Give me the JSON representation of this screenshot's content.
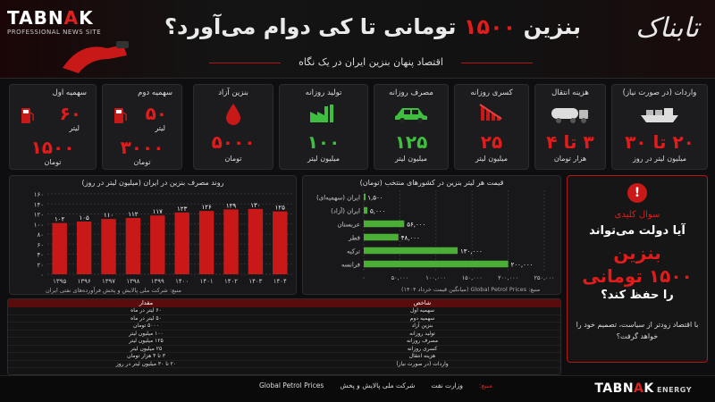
{
  "header": {
    "logo_left": "TABNAK",
    "logo_sub": "PROFESSIONAL NEWS SITE",
    "brand_fa": "تابناک",
    "title_pre": "بنزین",
    "title_red": "۱۵۰۰",
    "title_post": "تومانی تا کی دوام می‌آورد؟",
    "subtitle": "اقتصاد پنهان بنزین ایران در یک نگاه"
  },
  "cards": [
    {
      "title": "واردات (در صورت نیاز)",
      "value": "۲۰ تا ۳۰",
      "unit": "میلیون لیتر در روز",
      "icon": "tanker-ship-icon",
      "color": "red"
    },
    {
      "title": "هزینه انتقال",
      "value": "۳ تا ۴",
      "unit": "هزار تومان",
      "icon": "tanker-truck-icon",
      "color": "red"
    },
    {
      "title": "کسری روزانه",
      "value": "۲۵",
      "unit": "میلیون لیتر",
      "icon": "trend-down-icon",
      "color": "red"
    },
    {
      "title": "مصرف روزانه",
      "value": "۱۲۵",
      "unit": "میلیون لیتر",
      "icon": "car-icon",
      "color": "green"
    },
    {
      "title": "تولید روزانه",
      "value": "۱۰۰",
      "unit": "میلیون لیتر",
      "icon": "factory-icon",
      "color": "green"
    },
    {
      "title": "بنزین آزاد",
      "value": "۵۰۰۰",
      "unit": "تومان",
      "icon": "drop-icon",
      "color": "red"
    }
  ],
  "quota2": {
    "title": "سهمیه دوم",
    "amount": "۵۰",
    "amount_unit": "لیتر",
    "price": "۳۰۰۰",
    "price_unit": "تومان"
  },
  "quota1": {
    "title": "سهمیه اول",
    "amount": "۶۰",
    "amount_unit": "لیتر",
    "price": "۱۵۰۰",
    "price_unit": "تومان"
  },
  "colors": {
    "accent": "#e21b1b",
    "green": "#3fbf3f",
    "bar_green": "#4caf35",
    "bar_red": "#c81818"
  },
  "chart_data": [
    {
      "type": "bar",
      "title": "روند مصرف بنزین در ایران (میلیون لیتر در روز)",
      "categories": [
        "۱۳۹۵",
        "۱۳۹۶",
        "۱۳۹۷",
        "۱۳۹۸",
        "۱۳۹۹",
        "۱۴۰۰",
        "۱۴۰۱",
        "۱۴۰۲",
        "۱۴۰۳",
        "۱۴۰۴"
      ],
      "values": [
        102,
        105,
        110,
        112,
        117,
        123,
        126,
        129,
        130,
        125
      ],
      "value_labels": [
        "۱۰۲",
        "۱۰۵",
        "۱۱۰",
        "۱۱۲",
        "۱۱۷",
        "۱۲۳",
        "۱۲۶",
        "۱۲۹",
        "۱۳۰",
        "۱۲۵"
      ],
      "yticks": [
        "۰",
        "۲۰",
        "۴۰",
        "۶۰",
        "۸۰",
        "۱۰۰",
        "۱۲۰",
        "۱۴۰",
        "۱۶۰"
      ],
      "ylim": [
        0,
        160
      ],
      "grid": true,
      "source": "منبع: شرکت ملی پالایش و پخش فرآورده‌های نفتی ایران"
    },
    {
      "type": "bar",
      "orientation": "horizontal",
      "title": "قیمت هر لیتر بنزین در کشورهای منتخب (تومان)",
      "categories": [
        "ایران (سهمیه‌ای)",
        "ایران (آزاد)",
        "عربستان",
        "قطر",
        "ترکیه",
        "فرانسه"
      ],
      "values": [
        1500,
        5000,
        56000,
        48000,
        130000,
        200000
      ],
      "value_labels": [
        "۱,۵۰۰",
        "۵,۰۰۰",
        "۵۶,۰۰۰",
        "۴۸,۰۰۰",
        "۱۳۰,۰۰۰",
        "۲۰۰,۰۰۰"
      ],
      "xticks": [
        "۰",
        "۵۰,۰۰۰",
        "۱۰۰,۰۰۰",
        "۱۵۰,۰۰۰",
        "۲۰۰,۰۰۰",
        "۲۵۰,۰۰۰"
      ],
      "xlim": [
        0,
        250000
      ],
      "source": "منبع: Global Petrol Prices (میانگین قیمت خرداد ۱۴۰۴)"
    }
  ],
  "key_question": {
    "l1": "سوال کلیدی",
    "l2": "آیا دولت می‌تواند",
    "l3": "بنزین",
    "l4": "۱۵۰۰ تومانی",
    "l5": "را حفظ کند؟",
    "l6": "با اقتصاد زودتر از سیاست، تصمیم خود را خواهد گرفت؟"
  },
  "table": {
    "headers": [
      "شاخص",
      "مقدار"
    ],
    "rows": [
      [
        "سهمیه اول",
        "۶۰ لیتر در ماه"
      ],
      [
        "سهمیه دوم",
        "۵۰ لیتر در ماه"
      ],
      [
        "بنزین آزاد",
        "۵۰۰۰ تومان"
      ],
      [
        "تولید روزانه",
        "۱۰۰ میلیون لیتر"
      ],
      [
        "مصرف روزانه",
        "۱۲۵ میلیون لیتر"
      ],
      [
        "کسری روزانه",
        "۲۵ میلیون لیتر"
      ],
      [
        "هزینه انتقال",
        "۳ تا ۴ هزار تومان"
      ],
      [
        "واردات (در صورت نیاز)",
        "۲۰ تا ۳۰ میلیون لیتر در روز"
      ]
    ]
  },
  "footer": {
    "sources_label": "منبع:",
    "src1": "وزارت نفت",
    "src2": "شرکت ملی پالایش و پخش",
    "src3": "Global Petrol Prices",
    "brand": "TABNAK",
    "brand_en": "ENERGY"
  }
}
